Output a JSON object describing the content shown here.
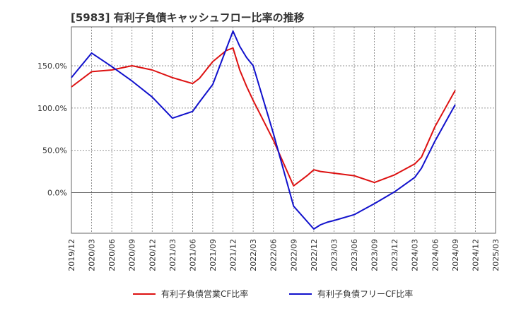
{
  "chart_data": {
    "type": "line",
    "title": "[5983]  有利子負債キャッシュフロー比率の推移",
    "xlabel": "",
    "ylabel": "",
    "x_ticks": [
      "2019/12",
      "2020/03",
      "2020/06",
      "2020/09",
      "2020/12",
      "2021/03",
      "2021/06",
      "2021/09",
      "2021/12",
      "2022/03",
      "2022/06",
      "2022/09",
      "2022/12",
      "2023/03",
      "2023/06",
      "2023/09",
      "2023/12",
      "2024/03",
      "2024/06",
      "2024/09",
      "2024/12",
      "2025/03"
    ],
    "y_ticks": [
      0,
      50,
      100,
      150
    ],
    "y_tick_labels": [
      "0.0%",
      "50.0%",
      "100.0%",
      "150.0%"
    ],
    "ylim": [
      -48,
      196
    ],
    "grid": true,
    "legend_position": "bottom",
    "series": [
      {
        "name": "有利子負債営業CF比率",
        "color": "#dd1111",
        "points": [
          [
            "2019/12",
            125
          ],
          [
            "2020/03",
            143
          ],
          [
            "2020/06",
            145
          ],
          [
            "2020/09",
            150
          ],
          [
            "2020/12",
            145
          ],
          [
            "2021/03",
            136
          ],
          [
            "2021/06",
            129
          ],
          [
            "2021/07",
            135
          ],
          [
            "2021/09",
            155
          ],
          [
            "2021/11",
            168
          ],
          [
            "2021/12",
            171
          ],
          [
            "2022/01",
            145
          ],
          [
            "2022/02",
            126
          ],
          [
            "2022/03",
            109
          ],
          [
            "2022/06",
            62
          ],
          [
            "2022/09",
            8
          ],
          [
            "2022/11",
            20
          ],
          [
            "2022/12",
            27
          ],
          [
            "2023/01",
            25
          ],
          [
            "2023/03",
            23
          ],
          [
            "2023/06",
            20
          ],
          [
            "2023/09",
            12
          ],
          [
            "2023/12",
            21
          ],
          [
            "2024/03",
            34
          ],
          [
            "2024/04",
            42
          ],
          [
            "2024/06",
            78
          ],
          [
            "2024/09",
            121
          ]
        ]
      },
      {
        "name": "有利子負債フリーCF比率",
        "color": "#1111cc",
        "points": [
          [
            "2019/12",
            136
          ],
          [
            "2020/03",
            165
          ],
          [
            "2020/06",
            149
          ],
          [
            "2020/09",
            132
          ],
          [
            "2020/12",
            113
          ],
          [
            "2021/03",
            88
          ],
          [
            "2021/06",
            96
          ],
          [
            "2021/07",
            107
          ],
          [
            "2021/09",
            128
          ],
          [
            "2021/12",
            191
          ],
          [
            "2022/01",
            173
          ],
          [
            "2022/02",
            160
          ],
          [
            "2022/03",
            150
          ],
          [
            "2022/06",
            70
          ],
          [
            "2022/09",
            -16
          ],
          [
            "2022/12",
            -43
          ],
          [
            "2023/01",
            -38
          ],
          [
            "2023/02",
            -35
          ],
          [
            "2023/03",
            -33
          ],
          [
            "2023/06",
            -26
          ],
          [
            "2023/09",
            -13
          ],
          [
            "2023/12",
            1
          ],
          [
            "2024/03",
            18
          ],
          [
            "2024/04",
            29
          ],
          [
            "2024/06",
            61
          ],
          [
            "2024/09",
            104
          ]
        ]
      }
    ]
  }
}
